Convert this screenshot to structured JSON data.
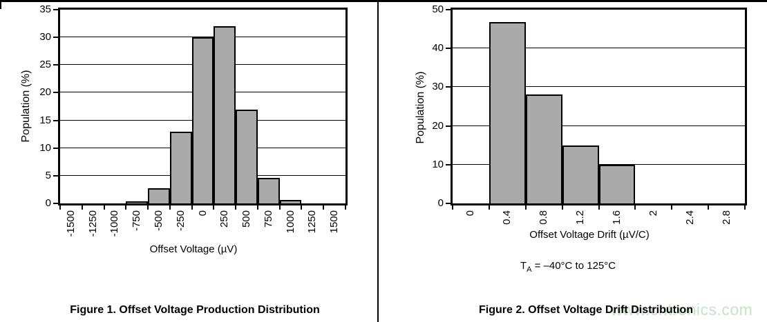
{
  "page": {
    "background": "#ffffff",
    "rule_color": "#000000",
    "watermark": {
      "text": "www.cntronics.com",
      "color": "#c3e5c3"
    }
  },
  "chart_data": [
    {
      "id": "figure-1",
      "type": "bar",
      "title": "Figure 1. Offset Voltage Production Distribution",
      "xlabel": "Offset Voltage (µV)",
      "ylabel": "Population (%)",
      "categories": [
        "-1500",
        "-1250",
        "-1000",
        "-750",
        "-500",
        "-250",
        "0",
        "250",
        "500",
        "750",
        "1000",
        "1250",
        "1500"
      ],
      "values": [
        0,
        0,
        0,
        0.4,
        2.8,
        13,
        30,
        32,
        16.9,
        4.6,
        0.6,
        0,
        0
      ],
      "ylim": [
        0,
        35
      ],
      "ystep": 5,
      "grid": true,
      "legend": null,
      "bar_fill": "#aaaaaa",
      "bar_border": "#000000"
    },
    {
      "id": "figure-2",
      "type": "bar",
      "title": "Figure 2. Offset Voltage Drift Distribution",
      "xlabel": "Offset Voltage Drift (µV/C)",
      "ylabel": "Population (%)",
      "categories": [
        "0",
        "0.4",
        "0.8",
        "1.2",
        "1.6",
        "2",
        "2.4",
        "2.8"
      ],
      "values": [
        0,
        46.8,
        28.2,
        15,
        10,
        0,
        0,
        0
      ],
      "ylim": [
        0,
        50
      ],
      "ystep": 10,
      "grid": true,
      "legend": null,
      "bar_fill": "#aaaaaa",
      "bar_border": "#000000",
      "annotation": {
        "t": "T",
        "sub": "A",
        "rest": " = –40°C to 125°C"
      }
    }
  ]
}
